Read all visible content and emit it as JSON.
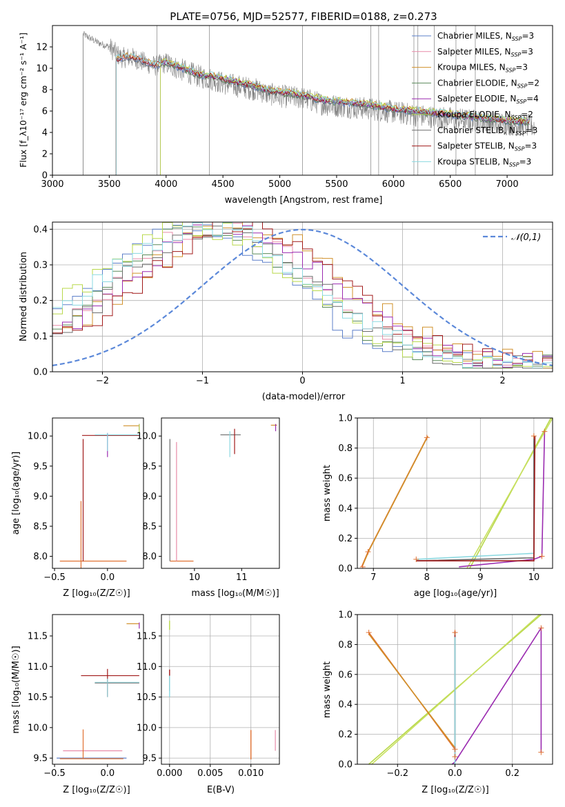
{
  "title": "PLATE=0756, MJD=52577, FIBERID=0188, z=0.273",
  "colors": {
    "chabrier_miles": "#5b7fc9",
    "salpeter_miles": "#e88aa8",
    "kroupa_miles": "#d0902a",
    "chabrier_elodie": "#5a8a5a",
    "salpeter_elodie": "#9a2ab0",
    "kroupa_elodie": "#b8d84a",
    "chabrier_stelib": "#6b6b6b",
    "salpeter_stelib": "#a01818",
    "kroupa_stelib": "#8ad8e0",
    "data": "#808080",
    "normal": "#5b88d9",
    "orange": "#e07030",
    "grid": "#b0b0b0"
  },
  "chart_data": [
    {
      "type": "line",
      "title": "PLATE=0756, MJD=52577, FIBERID=0188, z=0.273",
      "xlabel": "wavelength [Angstrom, rest frame]",
      "ylabel": "Flux [f_λ10^-17 erg cm^-2 s^-1 A^-1]",
      "xlim": [
        3000,
        7400
      ],
      "ylim": [
        0,
        14
      ],
      "xticks": [
        "3000",
        "3500",
        "4000",
        "4500",
        "5000",
        "5500",
        "6000",
        "6500",
        "7000"
      ],
      "yticks": [
        "0",
        "2",
        "4",
        "6",
        "8",
        "10",
        "12"
      ],
      "legend": [
        "Chabrier MILES, N_SSP=3",
        "Salpeter MILES, N_SSP=3",
        "Kroupa MILES, N_SSP=3",
        "Chabrier ELODIE, N_SSP=2",
        "Salpeter ELODIE, N_SSP=4",
        "Kroupa ELODIE, N_SSP=2",
        "Chabrier STELIB, N_SSP=3",
        "Salpeter STELIB, N_SSP=3",
        "Kroupa STELIB, N_SSP=3"
      ],
      "legend_loc": "upper right",
      "data_spectrum": {
        "x": [
          3270,
          3300,
          3400,
          3500,
          3600,
          3700,
          3800,
          3900,
          4000,
          4100,
          4200,
          4300,
          4400,
          4500,
          4600,
          4700,
          4800,
          4900,
          5000,
          5200,
          5400,
          5600,
          5800,
          6000,
          6200,
          6400,
          6600,
          6800,
          7000,
          7200
        ],
        "y": [
          13.2,
          13.0,
          12.4,
          12.0,
          11.0,
          11.0,
          10.6,
          10.2,
          10.5,
          10.0,
          9.6,
          9.2,
          9.0,
          8.6,
          8.4,
          8.2,
          8.0,
          7.6,
          7.4,
          7.2,
          6.6,
          6.4,
          6.2,
          5.9,
          5.6,
          5.4,
          5.2,
          5.0,
          4.8,
          4.6
        ]
      },
      "model_start": {
        "miles": 3560,
        "elodie": 3950,
        "stelib": 3270
      },
      "model_curve": {
        "x": [
          3560,
          3600,
          3700,
          3800,
          3900,
          4000,
          4100,
          4200,
          4300,
          4400,
          4500,
          4600,
          4700,
          4800,
          4900,
          5000,
          5200,
          5400,
          5600,
          5800,
          6000,
          6200,
          6400,
          6600,
          6800,
          7000,
          7200
        ],
        "y": [
          10.8,
          11.0,
          11.1,
          10.7,
          10.3,
          10.6,
          10.2,
          9.8,
          9.4,
          9.3,
          9.0,
          8.8,
          8.5,
          8.3,
          7.9,
          7.8,
          7.5,
          7.0,
          6.8,
          6.6,
          6.2,
          6.0,
          5.8,
          5.6,
          5.3,
          5.1,
          5.0
        ]
      }
    },
    {
      "type": "line",
      "xlabel": "(data-model)/error",
      "ylabel": "Normed distribution",
      "xlim": [
        -2.5,
        2.5
      ],
      "ylim": [
        0,
        0.42
      ],
      "xticks": [
        "−2",
        "−1",
        "0",
        "1",
        "2"
      ],
      "yticks": [
        "0.0",
        "0.1",
        "0.2",
        "0.3",
        "0.4"
      ],
      "legend": "𝒩(0,1)",
      "legend_loc": "upper right",
      "note": "step histograms of residuals for the 9 models plus dashed standard normal curve"
    },
    {
      "type": "scatter",
      "xlabel": "Z [log10(Z/Z☉)]",
      "ylabel": "age  [log10(age/yr)]",
      "xlim": [
        -0.52,
        0.34
      ],
      "ylim": [
        7.8,
        10.3
      ],
      "xticks": [
        "−0.5",
        "0.0"
      ],
      "yticks": [
        "8.0",
        "8.5",
        "9.0",
        "9.5",
        "10.0"
      ]
    },
    {
      "type": "scatter",
      "xlabel": "mass [log10(M/M☉)]",
      "xlim": [
        9.3,
        11.8
      ],
      "ylim": [
        7.8,
        10.3
      ],
      "xticks": [
        "10",
        "11"
      ],
      "yticks": [
        "8.0",
        "8.5",
        "9.0",
        "9.5",
        "10.0"
      ]
    },
    {
      "type": "line",
      "xlabel": "age  [log10(age/yr)]",
      "ylabel": "mass weight",
      "xlim": [
        6.7,
        10.35
      ],
      "ylim": [
        0,
        1.0
      ],
      "xticks": [
        "7",
        "8",
        "9",
        "10"
      ],
      "yticks": [
        "0.0",
        "0.2",
        "0.4",
        "0.6",
        "0.8",
        "1.0"
      ]
    },
    {
      "type": "scatter",
      "xlabel": "Z [log10(Z/Z☉)]",
      "ylabel": "mass [log10(M/M☉)]",
      "xlim": [
        -0.52,
        0.34
      ],
      "ylim": [
        9.4,
        11.85
      ],
      "xticks": [
        "−0.5",
        "0.0"
      ],
      "yticks": [
        "9.5",
        "10.0",
        "10.5",
        "11.0",
        "11.5"
      ]
    },
    {
      "type": "scatter",
      "xlabel": "E(B-V)",
      "xlim": [
        -0.001,
        0.0135
      ],
      "ylim": [
        9.4,
        11.85
      ],
      "xticks": [
        "0.000",
        "0.005",
        "0.010"
      ],
      "yticks": [
        "9.5",
        "10.0",
        "10.5",
        "11.0",
        "11.5"
      ]
    },
    {
      "type": "line",
      "xlabel": "Z [log10(Z/Z☉)]",
      "ylabel": "mass weight",
      "xlim": [
        -0.34,
        0.34
      ],
      "ylim": [
        0,
        1.0
      ],
      "xticks": [
        "−0.2",
        "0.0",
        "0.2"
      ],
      "yticks": [
        "0.0",
        "0.2",
        "0.4",
        "0.6",
        "0.8",
        "1.0"
      ]
    }
  ]
}
